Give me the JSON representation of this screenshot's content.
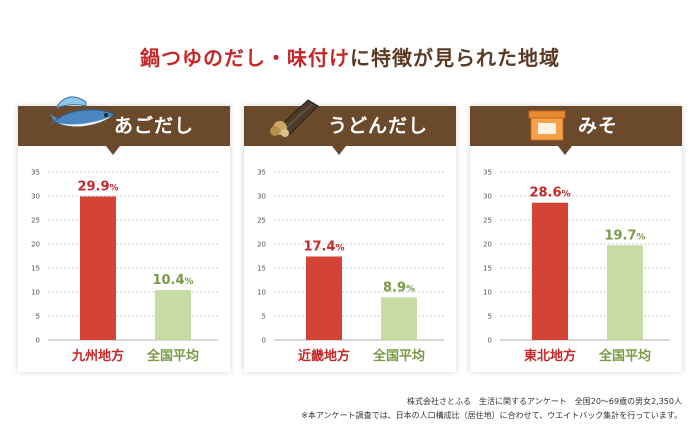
{
  "title": {
    "highlight": "鍋つゆのだし・味付け",
    "rest": "に特徴が見られた地域"
  },
  "colors": {
    "header": "#6b4a2b",
    "regional_bar": "#d44436",
    "national_bar": "#c7dca4",
    "regional_text": "#c62828",
    "national_text": "#7a9a45"
  },
  "chart_data": [
    {
      "type": "bar",
      "title": "あごだし",
      "icon": "flying-fish-icon",
      "categories": [
        "九州地方",
        "全国平均"
      ],
      "values": [
        29.9,
        10.4
      ],
      "value_labels": [
        "29.9",
        "10.4"
      ],
      "unit": "%",
      "yticks": [
        0,
        5,
        10,
        15,
        20,
        25,
        30,
        35
      ],
      "ylim": [
        0,
        35
      ],
      "grid": true
    },
    {
      "type": "bar",
      "title": "うどんだし",
      "icon": "kelp-and-bonito-icon",
      "categories": [
        "近畿地方",
        "全国平均"
      ],
      "values": [
        17.4,
        8.9
      ],
      "value_labels": [
        "17.4",
        "8.9"
      ],
      "unit": "%",
      "yticks": [
        0,
        5,
        10,
        15,
        20,
        25,
        30,
        35
      ],
      "ylim": [
        0,
        35
      ],
      "grid": true
    },
    {
      "type": "bar",
      "title": "みそ",
      "icon": "miso-container-icon",
      "categories": [
        "東北地方",
        "全国平均"
      ],
      "values": [
        28.6,
        19.7
      ],
      "value_labels": [
        "28.6",
        "19.7"
      ],
      "unit": "%",
      "yticks": [
        0,
        5,
        10,
        15,
        20,
        25,
        30,
        35
      ],
      "ylim": [
        0,
        35
      ],
      "grid": true
    }
  ],
  "footnotes": [
    "株式会社さとふる　生活に関するアンケート　全国20〜69歳の男女2,350人",
    "※本アンケート調査では、日本の人口構成比（居住地）に合わせて、ウエイトバック集計を行っています。"
  ]
}
